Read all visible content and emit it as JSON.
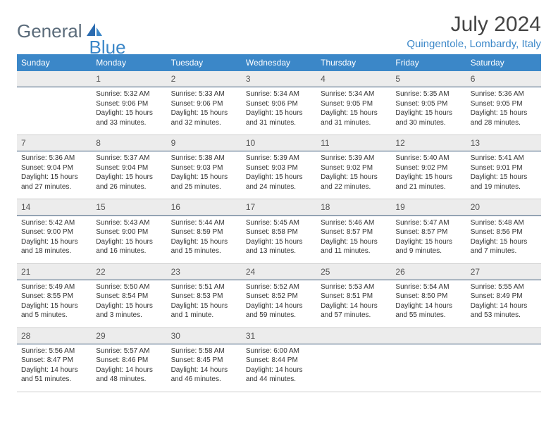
{
  "logo": {
    "main": "General",
    "sub": "Blue"
  },
  "title": "July 2024",
  "location": "Quingentole, Lombardy, Italy",
  "colors": {
    "header_bg": "#3b87c8",
    "header_text": "#ffffff",
    "daynum_bg": "#ececec",
    "border_dark": "#3b5a7a",
    "border_light": "#cccccc",
    "logo_main": "#5a6b7a",
    "logo_sub": "#3b87c8"
  },
  "day_names": [
    "Sunday",
    "Monday",
    "Tuesday",
    "Wednesday",
    "Thursday",
    "Friday",
    "Saturday"
  ],
  "weeks": [
    {
      "nums": [
        "",
        "1",
        "2",
        "3",
        "4",
        "5",
        "6"
      ],
      "cells": [
        [],
        [
          "Sunrise: 5:32 AM",
          "Sunset: 9:06 PM",
          "Daylight: 15 hours",
          "and 33 minutes."
        ],
        [
          "Sunrise: 5:33 AM",
          "Sunset: 9:06 PM",
          "Daylight: 15 hours",
          "and 32 minutes."
        ],
        [
          "Sunrise: 5:34 AM",
          "Sunset: 9:06 PM",
          "Daylight: 15 hours",
          "and 31 minutes."
        ],
        [
          "Sunrise: 5:34 AM",
          "Sunset: 9:05 PM",
          "Daylight: 15 hours",
          "and 31 minutes."
        ],
        [
          "Sunrise: 5:35 AM",
          "Sunset: 9:05 PM",
          "Daylight: 15 hours",
          "and 30 minutes."
        ],
        [
          "Sunrise: 5:36 AM",
          "Sunset: 9:05 PM",
          "Daylight: 15 hours",
          "and 28 minutes."
        ]
      ]
    },
    {
      "nums": [
        "7",
        "8",
        "9",
        "10",
        "11",
        "12",
        "13"
      ],
      "cells": [
        [
          "Sunrise: 5:36 AM",
          "Sunset: 9:04 PM",
          "Daylight: 15 hours",
          "and 27 minutes."
        ],
        [
          "Sunrise: 5:37 AM",
          "Sunset: 9:04 PM",
          "Daylight: 15 hours",
          "and 26 minutes."
        ],
        [
          "Sunrise: 5:38 AM",
          "Sunset: 9:03 PM",
          "Daylight: 15 hours",
          "and 25 minutes."
        ],
        [
          "Sunrise: 5:39 AM",
          "Sunset: 9:03 PM",
          "Daylight: 15 hours",
          "and 24 minutes."
        ],
        [
          "Sunrise: 5:39 AM",
          "Sunset: 9:02 PM",
          "Daylight: 15 hours",
          "and 22 minutes."
        ],
        [
          "Sunrise: 5:40 AM",
          "Sunset: 9:02 PM",
          "Daylight: 15 hours",
          "and 21 minutes."
        ],
        [
          "Sunrise: 5:41 AM",
          "Sunset: 9:01 PM",
          "Daylight: 15 hours",
          "and 19 minutes."
        ]
      ]
    },
    {
      "nums": [
        "14",
        "15",
        "16",
        "17",
        "18",
        "19",
        "20"
      ],
      "cells": [
        [
          "Sunrise: 5:42 AM",
          "Sunset: 9:00 PM",
          "Daylight: 15 hours",
          "and 18 minutes."
        ],
        [
          "Sunrise: 5:43 AM",
          "Sunset: 9:00 PM",
          "Daylight: 15 hours",
          "and 16 minutes."
        ],
        [
          "Sunrise: 5:44 AM",
          "Sunset: 8:59 PM",
          "Daylight: 15 hours",
          "and 15 minutes."
        ],
        [
          "Sunrise: 5:45 AM",
          "Sunset: 8:58 PM",
          "Daylight: 15 hours",
          "and 13 minutes."
        ],
        [
          "Sunrise: 5:46 AM",
          "Sunset: 8:57 PM",
          "Daylight: 15 hours",
          "and 11 minutes."
        ],
        [
          "Sunrise: 5:47 AM",
          "Sunset: 8:57 PM",
          "Daylight: 15 hours",
          "and 9 minutes."
        ],
        [
          "Sunrise: 5:48 AM",
          "Sunset: 8:56 PM",
          "Daylight: 15 hours",
          "and 7 minutes."
        ]
      ]
    },
    {
      "nums": [
        "21",
        "22",
        "23",
        "24",
        "25",
        "26",
        "27"
      ],
      "cells": [
        [
          "Sunrise: 5:49 AM",
          "Sunset: 8:55 PM",
          "Daylight: 15 hours",
          "and 5 minutes."
        ],
        [
          "Sunrise: 5:50 AM",
          "Sunset: 8:54 PM",
          "Daylight: 15 hours",
          "and 3 minutes."
        ],
        [
          "Sunrise: 5:51 AM",
          "Sunset: 8:53 PM",
          "Daylight: 15 hours",
          "and 1 minute."
        ],
        [
          "Sunrise: 5:52 AM",
          "Sunset: 8:52 PM",
          "Daylight: 14 hours",
          "and 59 minutes."
        ],
        [
          "Sunrise: 5:53 AM",
          "Sunset: 8:51 PM",
          "Daylight: 14 hours",
          "and 57 minutes."
        ],
        [
          "Sunrise: 5:54 AM",
          "Sunset: 8:50 PM",
          "Daylight: 14 hours",
          "and 55 minutes."
        ],
        [
          "Sunrise: 5:55 AM",
          "Sunset: 8:49 PM",
          "Daylight: 14 hours",
          "and 53 minutes."
        ]
      ]
    },
    {
      "nums": [
        "28",
        "29",
        "30",
        "31",
        "",
        "",
        ""
      ],
      "cells": [
        [
          "Sunrise: 5:56 AM",
          "Sunset: 8:47 PM",
          "Daylight: 14 hours",
          "and 51 minutes."
        ],
        [
          "Sunrise: 5:57 AM",
          "Sunset: 8:46 PM",
          "Daylight: 14 hours",
          "and 48 minutes."
        ],
        [
          "Sunrise: 5:58 AM",
          "Sunset: 8:45 PM",
          "Daylight: 14 hours",
          "and 46 minutes."
        ],
        [
          "Sunrise: 6:00 AM",
          "Sunset: 8:44 PM",
          "Daylight: 14 hours",
          "and 44 minutes."
        ],
        [],
        [],
        []
      ]
    }
  ]
}
